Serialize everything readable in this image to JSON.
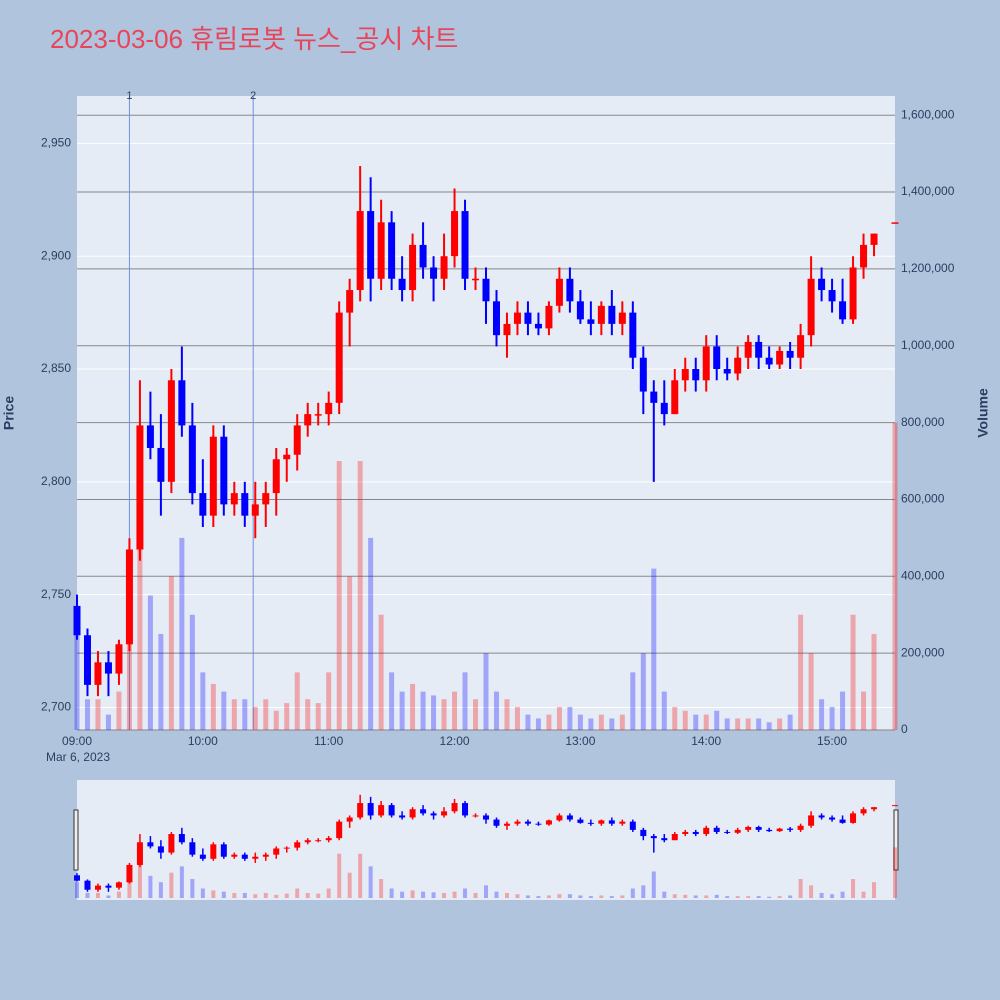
{
  "chart_data": {
    "type": "candlestick",
    "title": "2023-03-06 휴림로봇 뉴스_공시 차트",
    "y_title": "Price",
    "y2_title": "Volume",
    "x_date_label": "Mar 6, 2023",
    "increasing_color": "#ff0000",
    "decreasing_color": "#0000ff",
    "xlim": [
      "09:00",
      "15:30"
    ],
    "xticks": [
      "09:00",
      "10:00",
      "11:00",
      "12:00",
      "13:00",
      "14:00",
      "15:00"
    ],
    "ylim": [
      2690,
      2971
    ],
    "yticks": [
      {
        "value": 2700,
        "label": "2,700"
      },
      {
        "value": 2750,
        "label": "2,750"
      },
      {
        "value": 2800,
        "label": "2,800"
      },
      {
        "value": 2850,
        "label": "2,850"
      },
      {
        "value": 2900,
        "label": "2,900"
      },
      {
        "value": 2950,
        "label": "2,950"
      }
    ],
    "y2lim": [
      0,
      1650000
    ],
    "y2ticks": [
      0,
      {
        "value": 200000,
        "label": "200,000"
      },
      {
        "value": 400000,
        "label": "400,000"
      },
      {
        "value": 600000,
        "label": "600,000"
      },
      {
        "value": 800000,
        "label": "800,000"
      },
      {
        "value": 1000000,
        "label": "1,000,000"
      },
      {
        "value": 1200000,
        "label": "1,200,000"
      },
      {
        "value": 1400000,
        "label": "1,400,000"
      },
      {
        "value": 1600000,
        "label": "1,600,000"
      }
    ],
    "grid": true,
    "annotations": [
      {
        "x": "09:25",
        "text": "1"
      },
      {
        "x": "10:24",
        "text": "2"
      }
    ],
    "x": [
      "09:00",
      "09:05",
      "09:10",
      "09:15",
      "09:20",
      "09:25",
      "09:30",
      "09:35",
      "09:40",
      "09:45",
      "09:50",
      "09:55",
      "10:00",
      "10:05",
      "10:10",
      "10:15",
      "10:20",
      "10:25",
      "10:30",
      "10:35",
      "10:40",
      "10:45",
      "10:50",
      "10:55",
      "11:00",
      "11:05",
      "11:10",
      "11:15",
      "11:20",
      "11:25",
      "11:30",
      "11:35",
      "11:40",
      "11:45",
      "11:50",
      "11:55",
      "12:00",
      "12:05",
      "12:10",
      "12:15",
      "12:20",
      "12:25",
      "12:30",
      "12:35",
      "12:40",
      "12:45",
      "12:50",
      "12:55",
      "13:00",
      "13:05",
      "13:10",
      "13:15",
      "13:20",
      "13:25",
      "13:30",
      "13:35",
      "13:40",
      "13:45",
      "13:50",
      "13:55",
      "14:00",
      "14:05",
      "14:10",
      "14:15",
      "14:20",
      "14:25",
      "14:30",
      "14:35",
      "14:40",
      "14:45",
      "14:50",
      "14:55",
      "15:00",
      "15:05",
      "15:10",
      "15:15",
      "15:20",
      "15:30"
    ],
    "open": [
      2745,
      2732,
      2710,
      2720,
      2715,
      2728,
      2770,
      2825,
      2815,
      2800,
      2845,
      2825,
      2795,
      2785,
      2820,
      2790,
      2795,
      2785,
      2790,
      2795,
      2810,
      2812,
      2825,
      2830,
      2830,
      2835,
      2875,
      2885,
      2920,
      2890,
      2915,
      2890,
      2885,
      2905,
      2895,
      2890,
      2900,
      2920,
      2890,
      2890,
      2880,
      2865,
      2870,
      2875,
      2870,
      2868,
      2878,
      2890,
      2880,
      2872,
      2870,
      2878,
      2870,
      2875,
      2855,
      2840,
      2835,
      2830,
      2845,
      2850,
      2845,
      2860,
      2850,
      2848,
      2855,
      2862,
      2855,
      2852,
      2858,
      2855,
      2865,
      2890,
      2885,
      2880,
      2872,
      2895,
      2905,
      2915
    ],
    "high": [
      2750,
      2735,
      2725,
      2725,
      2730,
      2775,
      2845,
      2840,
      2830,
      2850,
      2860,
      2835,
      2810,
      2825,
      2825,
      2800,
      2800,
      2800,
      2800,
      2815,
      2815,
      2830,
      2835,
      2835,
      2840,
      2880,
      2890,
      2940,
      2935,
      2925,
      2920,
      2900,
      2910,
      2915,
      2900,
      2910,
      2930,
      2925,
      2895,
      2895,
      2885,
      2875,
      2880,
      2880,
      2875,
      2880,
      2895,
      2895,
      2885,
      2880,
      2880,
      2885,
      2880,
      2880,
      2860,
      2845,
      2845,
      2850,
      2855,
      2855,
      2865,
      2865,
      2855,
      2860,
      2865,
      2865,
      2860,
      2860,
      2862,
      2870,
      2900,
      2895,
      2890,
      2890,
      2900,
      2910,
      2910,
      2915
    ],
    "low": [
      2730,
      2705,
      2705,
      2705,
      2710,
      2725,
      2765,
      2810,
      2785,
      2795,
      2820,
      2790,
      2780,
      2780,
      2785,
      2785,
      2780,
      2775,
      2780,
      2785,
      2800,
      2805,
      2820,
      2825,
      2825,
      2830,
      2860,
      2880,
      2880,
      2885,
      2885,
      2880,
      2880,
      2890,
      2880,
      2885,
      2895,
      2885,
      2885,
      2870,
      2860,
      2855,
      2865,
      2865,
      2865,
      2865,
      2875,
      2875,
      2870,
      2865,
      2865,
      2865,
      2865,
      2850,
      2830,
      2800,
      2825,
      2830,
      2840,
      2840,
      2840,
      2845,
      2845,
      2845,
      2850,
      2850,
      2850,
      2850,
      2850,
      2850,
      2860,
      2880,
      2875,
      2870,
      2870,
      2890,
      2900,
      2915
    ],
    "close": [
      2732,
      2710,
      2720,
      2715,
      2728,
      2770,
      2825,
      2815,
      2800,
      2845,
      2825,
      2795,
      2785,
      2820,
      2790,
      2795,
      2785,
      2790,
      2795,
      2810,
      2812,
      2825,
      2830,
      2830,
      2835,
      2875,
      2885,
      2920,
      2890,
      2915,
      2890,
      2885,
      2905,
      2895,
      2890,
      2900,
      2920,
      2890,
      2890,
      2880,
      2865,
      2870,
      2875,
      2870,
      2868,
      2878,
      2890,
      2880,
      2872,
      2870,
      2878,
      2870,
      2875,
      2855,
      2840,
      2835,
      2830,
      2845,
      2850,
      2845,
      2860,
      2850,
      2848,
      2855,
      2862,
      2855,
      2852,
      2858,
      2855,
      2865,
      2890,
      2885,
      2880,
      2872,
      2895,
      2905,
      2910,
      2915
    ],
    "volume": [
      250000,
      80000,
      80000,
      40000,
      100000,
      300000,
      600000,
      350000,
      250000,
      400000,
      500000,
      300000,
      150000,
      120000,
      100000,
      80000,
      80000,
      60000,
      80000,
      50000,
      70000,
      150000,
      80000,
      70000,
      150000,
      700000,
      400000,
      700000,
      500000,
      300000,
      150000,
      100000,
      120000,
      100000,
      90000,
      80000,
      100000,
      150000,
      80000,
      200000,
      100000,
      80000,
      60000,
      40000,
      30000,
      40000,
      60000,
      60000,
      40000,
      30000,
      40000,
      30000,
      40000,
      150000,
      200000,
      420000,
      100000,
      60000,
      50000,
      40000,
      40000,
      50000,
      30000,
      30000,
      30000,
      30000,
      20000,
      30000,
      40000,
      300000,
      200000,
      80000,
      60000,
      100000,
      300000,
      100000,
      250000,
      800000
    ]
  }
}
